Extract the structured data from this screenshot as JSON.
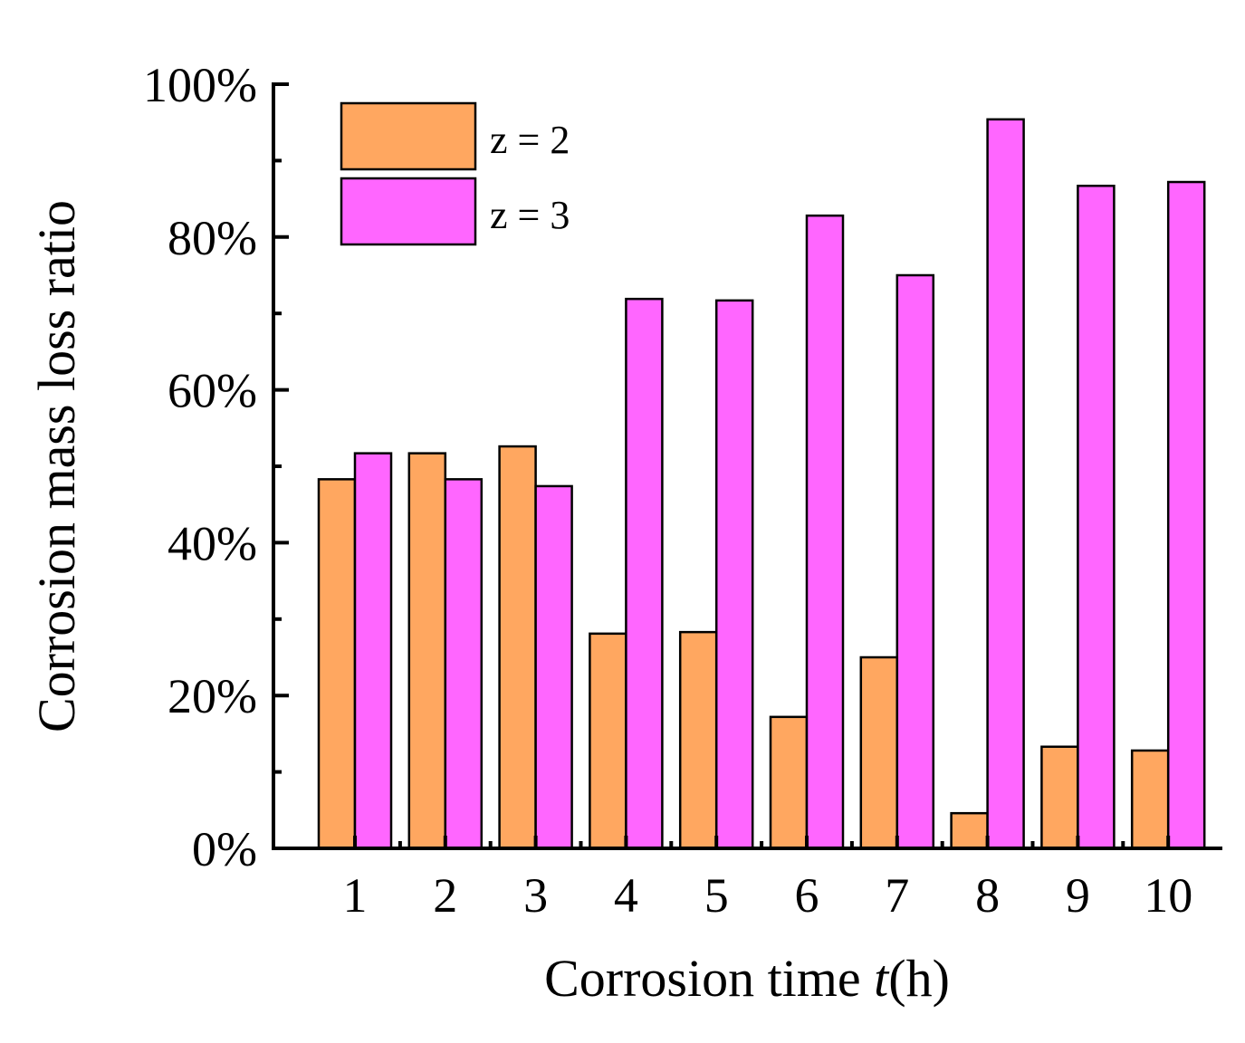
{
  "chart_data": {
    "type": "bar",
    "title": "",
    "xlabel_prefix": "Corrosion time ",
    "xlabel_var": "t",
    "xlabel_suffix": "(h)",
    "ylabel": "Corrosion mass loss ratio",
    "categories": [
      "1",
      "2",
      "3",
      "4",
      "5",
      "6",
      "7",
      "8",
      "9",
      "10"
    ],
    "series": [
      {
        "name": "z = 2",
        "color": "#FFA760",
        "values": [
          48.3,
          51.7,
          52.6,
          28.1,
          28.3,
          17.2,
          25.0,
          4.6,
          13.3,
          12.8
        ]
      },
      {
        "name": "z = 3",
        "color": "#FF66FF",
        "values": [
          51.7,
          48.3,
          47.4,
          71.9,
          71.7,
          82.8,
          75.0,
          95.4,
          86.7,
          87.2
        ]
      }
    ],
    "ylim": [
      0,
      100
    ],
    "yticks": [
      0,
      20,
      40,
      60,
      80,
      100
    ],
    "ytick_labels": [
      "0%",
      "20%",
      "40%",
      "60%",
      "80%",
      "100%"
    ],
    "legend_position": "top-left",
    "grid": false
  }
}
